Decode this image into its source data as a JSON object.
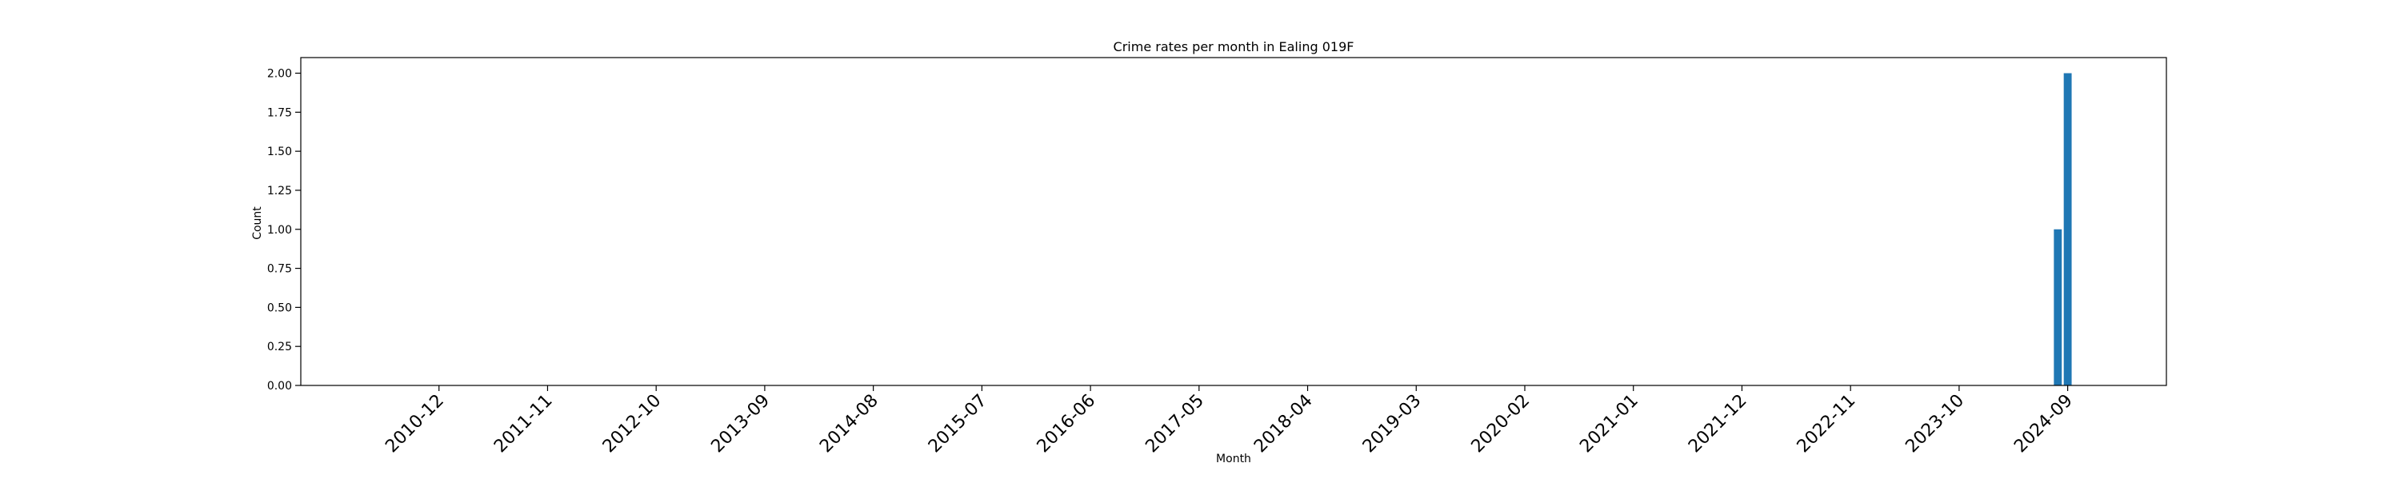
{
  "chart_data": {
    "type": "bar",
    "title": "Crime rates per month in Ealing 019F",
    "xlabel": "Month",
    "ylabel": "Count",
    "ylim": [
      0,
      2.1
    ],
    "yticks": [
      "0.00",
      "0.25",
      "0.50",
      "0.75",
      "1.00",
      "1.25",
      "1.50",
      "1.75",
      "2.00"
    ],
    "x_tick_labels": [
      "2010-12",
      "2011-11",
      "2012-10",
      "2013-09",
      "2014-08",
      "2015-07",
      "2016-06",
      "2017-05",
      "2018-04",
      "2019-03",
      "2020-02",
      "2021-01",
      "2021-12",
      "2022-11",
      "2023-10",
      "2024-09"
    ],
    "bars": [
      {
        "month": "2024-08",
        "value": 1
      },
      {
        "month": "2024-09",
        "value": 2
      }
    ],
    "bar_color": "#1f77b4",
    "grid": false,
    "legend": "none"
  }
}
